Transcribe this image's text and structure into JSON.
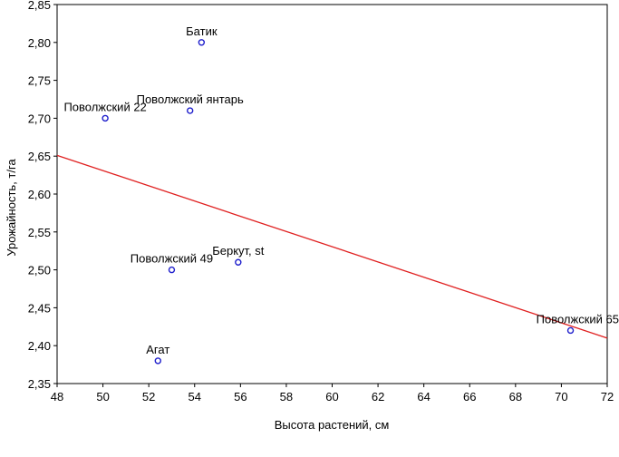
{
  "chart_data": {
    "type": "scatter",
    "title": "",
    "xlabel": "Высота растений, см",
    "ylabel": "Урожайность, т/га",
    "xlim": [
      48,
      72
    ],
    "ylim": [
      2.35,
      2.85
    ],
    "x_ticks": [
      "48",
      "50",
      "52",
      "54",
      "56",
      "58",
      "60",
      "62",
      "64",
      "66",
      "68",
      "70",
      "72"
    ],
    "y_ticks": [
      "2,35",
      "2,40",
      "2,45",
      "2,50",
      "2,55",
      "2,60",
      "2,65",
      "2,70",
      "2,75",
      "2,80",
      "2,85"
    ],
    "grid": false,
    "points": [
      {
        "label": "Батик",
        "x": 54.3,
        "y": 2.8
      },
      {
        "label": "Поволжский янтарь",
        "x": 53.8,
        "y": 2.71
      },
      {
        "label": "Поволжский 22",
        "x": 50.1,
        "y": 2.7
      },
      {
        "label": "Беркут, st",
        "x": 55.9,
        "y": 2.51
      },
      {
        "label": "Поволжский 49",
        "x": 53.0,
        "y": 2.5
      },
      {
        "label": "Агат",
        "x": 52.4,
        "y": 2.38
      },
      {
        "label": "Поволжский 65",
        "x": 70.4,
        "y": 2.42
      }
    ],
    "trendline": {
      "x": [
        48,
        72
      ],
      "y": [
        2.651,
        2.41
      ]
    },
    "colors": {
      "points": "#1f1fcc",
      "trendline": "#e02020",
      "axes": "#000000"
    }
  }
}
